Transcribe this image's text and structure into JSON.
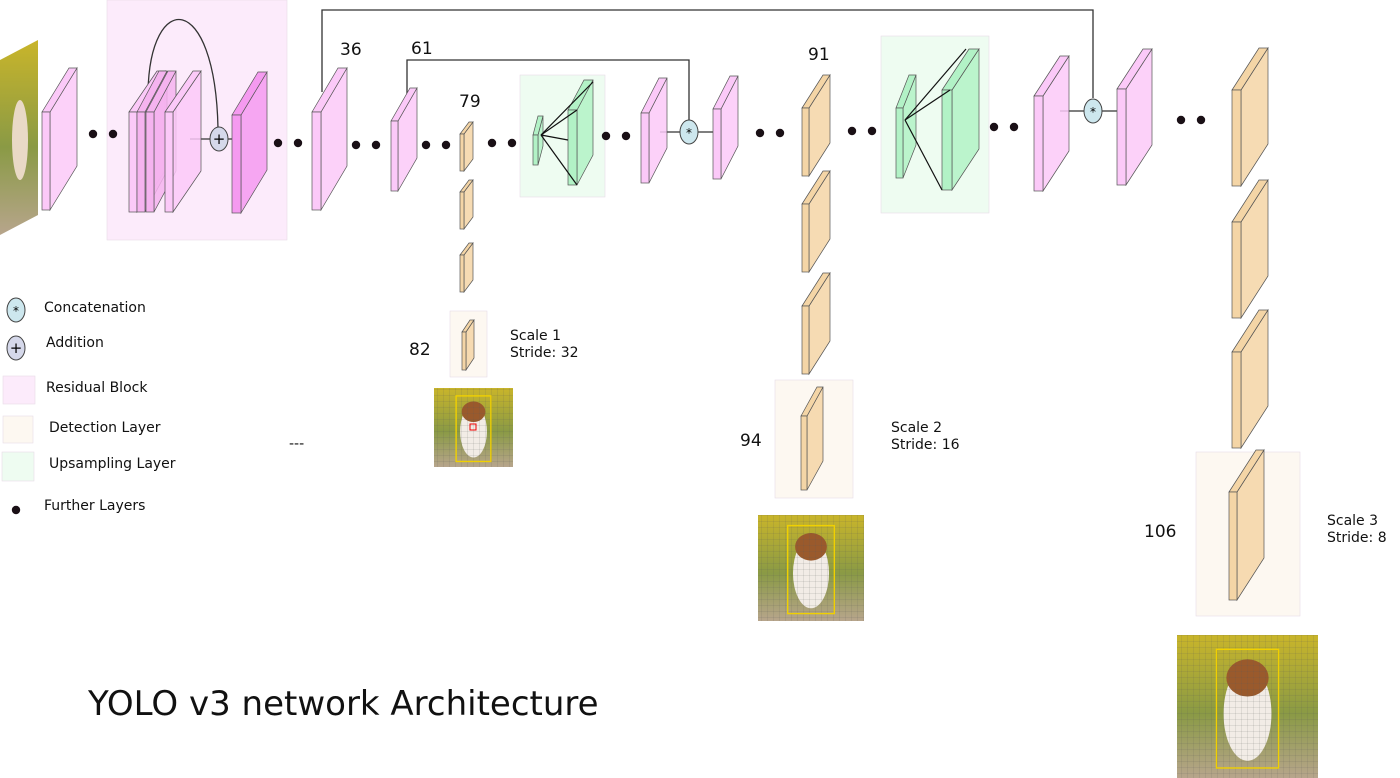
{
  "title": "YOLO v3 network Architecture",
  "layer_numbers": {
    "l36": "36",
    "l61": "61",
    "l79": "79",
    "l82": "82",
    "l91": "91",
    "l94": "94",
    "l106": "106"
  },
  "scales": [
    {
      "scale": "Scale 1",
      "stride": "Stride: 32"
    },
    {
      "scale": "Scale 2",
      "stride": "Stride: 16"
    },
    {
      "scale": "Scale 3",
      "stride": "Stride: 8"
    }
  ],
  "legend": {
    "concatenation": "Concatenation",
    "addition": "Addition",
    "residual": "Residual Block",
    "detection": "Detection Layer",
    "upsampling": "Upsampling Layer",
    "further": "Further Layers"
  },
  "ellipsis": "---",
  "colors": {
    "residual": "#fbc9f8",
    "residual_dark": "#f59af0",
    "residual_bg": "#fcebfb",
    "detection": "#f4d5a6",
    "detection_bg": "#fdf8f1",
    "upsampling": "#b2f2c6",
    "upsampling_bg": "#eefcf1",
    "operator": "#cde7ee"
  }
}
